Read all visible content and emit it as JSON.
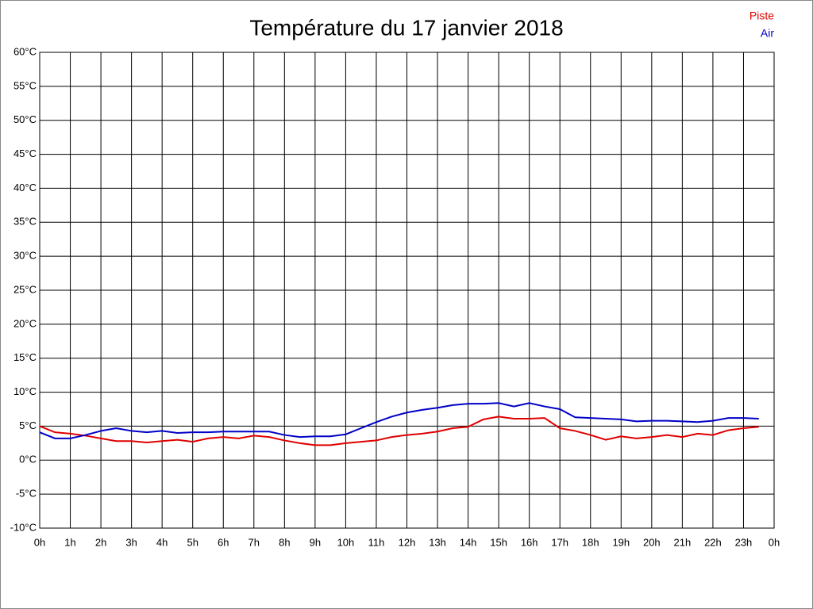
{
  "chart_data": {
    "type": "line",
    "title": "Température du 17 janvier 2018",
    "x": [
      0,
      0.5,
      1,
      1.5,
      2,
      2.5,
      3,
      3.5,
      4,
      4.5,
      5,
      5.5,
      6,
      6.5,
      7,
      7.5,
      8,
      8.5,
      9,
      9.5,
      10,
      10.5,
      11,
      11.5,
      12,
      12.5,
      13,
      13.5,
      14,
      14.5,
      15,
      15.5,
      16,
      16.5,
      17,
      17.5,
      18,
      18.5,
      19,
      19.5,
      20,
      20.5,
      21,
      21.5,
      22,
      22.5,
      23,
      23.5
    ],
    "series": [
      {
        "name": "Piste",
        "color": "#e00000",
        "values": [
          5.0,
          4.1,
          3.9,
          3.6,
          3.2,
          2.8,
          2.8,
          2.6,
          2.8,
          3.0,
          2.7,
          3.2,
          3.4,
          3.2,
          3.6,
          3.4,
          2.9,
          2.5,
          2.2,
          2.2,
          2.5,
          2.7,
          2.9,
          3.4,
          3.7,
          3.9,
          4.2,
          4.7,
          4.9,
          6.0,
          6.4,
          6.1,
          6.1,
          6.2,
          4.7,
          4.3,
          3.7,
          3.0,
          3.5,
          3.2,
          3.4,
          3.7,
          3.4,
          3.9,
          3.7,
          4.4,
          4.7,
          4.9
        ]
      },
      {
        "name": "Air",
        "color": "#0000c8",
        "values": [
          4.1,
          3.2,
          3.2,
          3.7,
          4.3,
          4.7,
          4.3,
          4.1,
          4.3,
          4.0,
          4.1,
          4.1,
          4.2,
          4.2,
          4.2,
          4.2,
          3.7,
          3.4,
          3.5,
          3.5,
          3.8,
          4.7,
          5.6,
          6.4,
          7.0,
          7.4,
          7.7,
          8.1,
          8.3,
          8.3,
          8.4,
          7.9,
          8.4,
          7.9,
          7.5,
          6.3,
          6.2,
          6.1,
          6.0,
          5.7,
          5.8,
          5.8,
          5.7,
          5.6,
          5.8,
          6.2,
          6.2,
          6.1
        ]
      }
    ],
    "xlim": [
      0,
      24
    ],
    "xticks": [
      {
        "value": 0,
        "label": "0h"
      },
      {
        "value": 1,
        "label": "1h"
      },
      {
        "value": 2,
        "label": "2h"
      },
      {
        "value": 3,
        "label": "3h"
      },
      {
        "value": 4,
        "label": "4h"
      },
      {
        "value": 5,
        "label": "5h"
      },
      {
        "value": 6,
        "label": "6h"
      },
      {
        "value": 7,
        "label": "7h"
      },
      {
        "value": 8,
        "label": "8h"
      },
      {
        "value": 9,
        "label": "9h"
      },
      {
        "value": 10,
        "label": "10h"
      },
      {
        "value": 11,
        "label": "11h"
      },
      {
        "value": 12,
        "label": "12h"
      },
      {
        "value": 13,
        "label": "13h"
      },
      {
        "value": 14,
        "label": "14h"
      },
      {
        "value": 15,
        "label": "15h"
      },
      {
        "value": 16,
        "label": "16h"
      },
      {
        "value": 17,
        "label": "17h"
      },
      {
        "value": 18,
        "label": "18h"
      },
      {
        "value": 19,
        "label": "19h"
      },
      {
        "value": 20,
        "label": "20h"
      },
      {
        "value": 21,
        "label": "21h"
      },
      {
        "value": 22,
        "label": "22h"
      },
      {
        "value": 23,
        "label": "23h"
      },
      {
        "value": 24,
        "label": "0h"
      }
    ],
    "ylim": [
      -10,
      60
    ],
    "yticks": [
      {
        "value": -10,
        "label": "-10°C"
      },
      {
        "value": -5,
        "label": "-5°C"
      },
      {
        "value": 0,
        "label": "0°C"
      },
      {
        "value": 5,
        "label": "5°C"
      },
      {
        "value": 10,
        "label": "10°C"
      },
      {
        "value": 15,
        "label": "15°C"
      },
      {
        "value": 20,
        "label": "20°C"
      },
      {
        "value": 25,
        "label": "25°C"
      },
      {
        "value": 30,
        "label": "30°C"
      },
      {
        "value": 35,
        "label": "35°C"
      },
      {
        "value": 40,
        "label": "40°C"
      },
      {
        "value": 45,
        "label": "45°C"
      },
      {
        "value": 50,
        "label": "50°C"
      },
      {
        "value": 55,
        "label": "55°C"
      },
      {
        "value": 60,
        "label": "60°C"
      }
    ],
    "grid": true,
    "legend": "top-right"
  }
}
